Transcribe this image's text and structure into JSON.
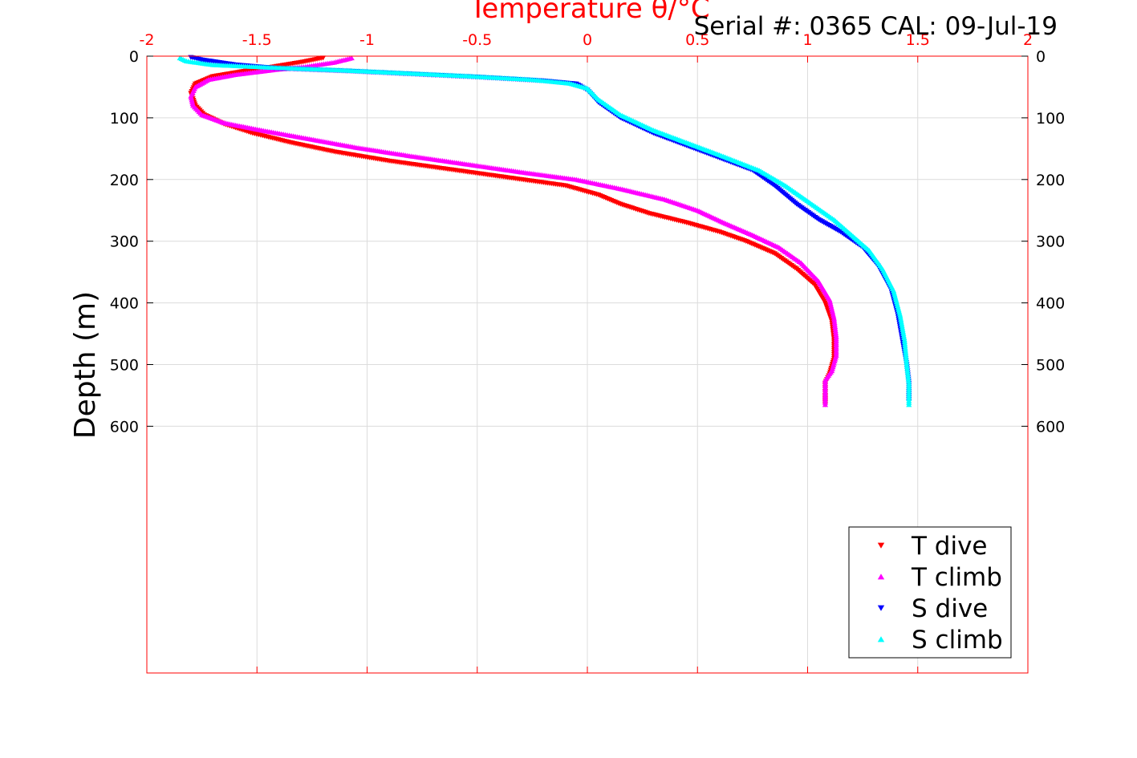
{
  "chart_data": {
    "type": "scatter",
    "title": "Temperature θ/°C",
    "subtitle": "Serial #: 0365  CAL: 09-Jul-19",
    "xlabel": "Temperature θ/°C",
    "ylabel": "Depth (m)",
    "xlim": [
      -2,
      2
    ],
    "ylim": [
      0,
      1000
    ],
    "y_reversed": true,
    "x_axis_position": "top",
    "xticks": [
      -2,
      -1.5,
      -1,
      -0.5,
      0,
      0.5,
      1,
      1.5,
      2
    ],
    "xtick_labels": [
      "-2",
      "-1.5",
      "-1",
      "-0.5",
      "0",
      "0.5",
      "1",
      "1.5",
      "2"
    ],
    "yticks": [
      0,
      100,
      200,
      300,
      400,
      500,
      600
    ],
    "ytick_labels": [
      "0",
      "100",
      "200",
      "300",
      "400",
      "500",
      "600"
    ],
    "grid": true,
    "legend_position": "bottom-right",
    "series": [
      {
        "name": "T dive",
        "color": "#ff0000",
        "marker": "triangle-down",
        "points": [
          [
            -1.2,
            3
          ],
          [
            -1.3,
            10
          ],
          [
            -1.42,
            17
          ],
          [
            -1.55,
            24
          ],
          [
            -1.7,
            33
          ],
          [
            -1.78,
            45
          ],
          [
            -1.8,
            60
          ],
          [
            -1.78,
            80
          ],
          [
            -1.74,
            95
          ],
          [
            -1.65,
            110
          ],
          [
            -1.52,
            125
          ],
          [
            -1.35,
            140
          ],
          [
            -1.15,
            155
          ],
          [
            -0.9,
            170
          ],
          [
            -0.6,
            185
          ],
          [
            -0.3,
            200
          ],
          [
            -0.1,
            210
          ],
          [
            0.05,
            225
          ],
          [
            0.15,
            240
          ],
          [
            0.28,
            255
          ],
          [
            0.45,
            270
          ],
          [
            0.6,
            285
          ],
          [
            0.72,
            300
          ],
          [
            0.85,
            320
          ],
          [
            0.95,
            345
          ],
          [
            1.03,
            370
          ],
          [
            1.08,
            400
          ],
          [
            1.11,
            430
          ],
          [
            1.12,
            460
          ],
          [
            1.12,
            490
          ],
          [
            1.1,
            515
          ],
          [
            1.08,
            530
          ],
          [
            1.08,
            550
          ],
          [
            1.08,
            565
          ]
        ]
      },
      {
        "name": "T climb",
        "color": "#ff00ff",
        "marker": "triangle-up",
        "points": [
          [
            -1.07,
            3
          ],
          [
            -1.15,
            10
          ],
          [
            -1.28,
            17
          ],
          [
            -1.42,
            22
          ],
          [
            -1.6,
            30
          ],
          [
            -1.72,
            38
          ],
          [
            -1.78,
            50
          ],
          [
            -1.8,
            65
          ],
          [
            -1.79,
            80
          ],
          [
            -1.75,
            95
          ],
          [
            -1.65,
            108
          ],
          [
            -1.48,
            120
          ],
          [
            -1.28,
            133
          ],
          [
            -1.05,
            148
          ],
          [
            -0.8,
            162
          ],
          [
            -0.55,
            175
          ],
          [
            -0.3,
            188
          ],
          [
            -0.05,
            200
          ],
          [
            0.15,
            215
          ],
          [
            0.35,
            232
          ],
          [
            0.5,
            250
          ],
          [
            0.62,
            270
          ],
          [
            0.75,
            290
          ],
          [
            0.87,
            310
          ],
          [
            0.97,
            335
          ],
          [
            1.05,
            365
          ],
          [
            1.1,
            395
          ],
          [
            1.12,
            425
          ],
          [
            1.13,
            455
          ],
          [
            1.13,
            485
          ],
          [
            1.11,
            510
          ],
          [
            1.08,
            525
          ],
          [
            1.08,
            545
          ],
          [
            1.08,
            565
          ]
        ]
      },
      {
        "name": "S dive",
        "color": "#0000ff",
        "marker": "triangle-down",
        "points": [
          [
            -1.8,
            2
          ],
          [
            -1.75,
            6
          ],
          [
            -1.6,
            14
          ],
          [
            -1.4,
            20
          ],
          [
            -1.1,
            24
          ],
          [
            -0.8,
            29
          ],
          [
            -0.5,
            34
          ],
          [
            -0.2,
            40
          ],
          [
            -0.05,
            45
          ],
          [
            0.0,
            55
          ],
          [
            0.05,
            75
          ],
          [
            0.15,
            100
          ],
          [
            0.3,
            125
          ],
          [
            0.45,
            145
          ],
          [
            0.6,
            165
          ],
          [
            0.75,
            185
          ],
          [
            0.85,
            210
          ],
          [
            0.95,
            240
          ],
          [
            1.05,
            265
          ],
          [
            1.15,
            285
          ],
          [
            1.25,
            310
          ],
          [
            1.32,
            340
          ],
          [
            1.38,
            380
          ],
          [
            1.41,
            420
          ],
          [
            1.43,
            460
          ],
          [
            1.45,
            500
          ],
          [
            1.46,
            530
          ],
          [
            1.46,
            560
          ]
        ]
      },
      {
        "name": "S climb",
        "color": "#00ffff",
        "marker": "triangle-up",
        "points": [
          [
            -1.85,
            3
          ],
          [
            -1.82,
            8
          ],
          [
            -1.7,
            14
          ],
          [
            -1.45,
            18
          ],
          [
            -1.15,
            22
          ],
          [
            -0.85,
            27
          ],
          [
            -0.55,
            32
          ],
          [
            -0.25,
            38
          ],
          [
            -0.08,
            44
          ],
          [
            0.0,
            52
          ],
          [
            0.05,
            70
          ],
          [
            0.15,
            95
          ],
          [
            0.3,
            120
          ],
          [
            0.45,
            140
          ],
          [
            0.6,
            160
          ],
          [
            0.78,
            185
          ],
          [
            0.9,
            210
          ],
          [
            1.02,
            240
          ],
          [
            1.12,
            265
          ],
          [
            1.2,
            290
          ],
          [
            1.28,
            315
          ],
          [
            1.34,
            345
          ],
          [
            1.39,
            380
          ],
          [
            1.42,
            420
          ],
          [
            1.44,
            460
          ],
          [
            1.45,
            500
          ],
          [
            1.46,
            530
          ],
          [
            1.46,
            565
          ]
        ]
      }
    ]
  }
}
